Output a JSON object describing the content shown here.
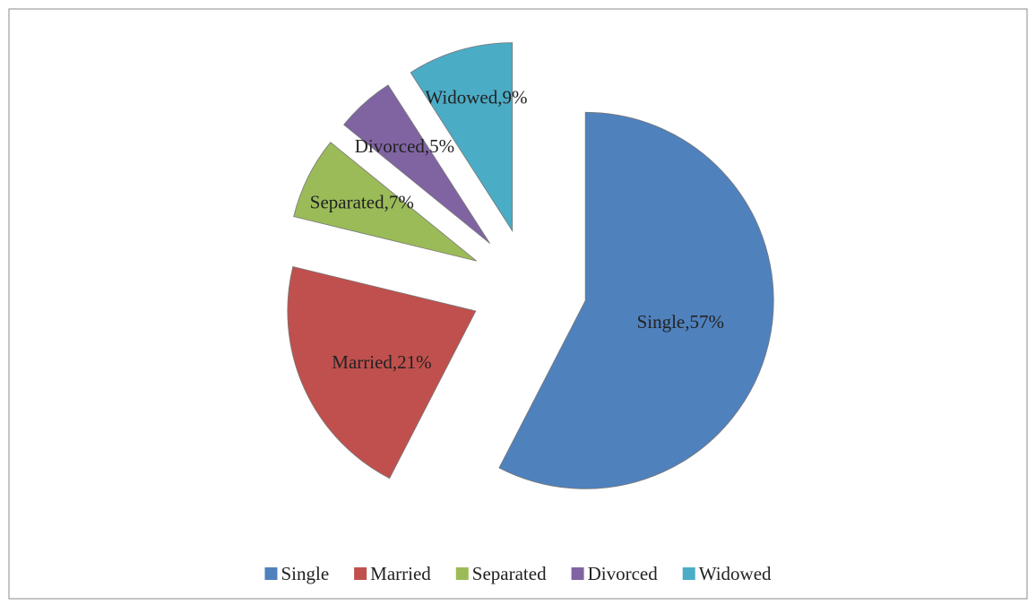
{
  "chart_data": {
    "type": "pie",
    "categories": [
      "Single",
      "Married",
      "Separated",
      "Divorced",
      "Widowed"
    ],
    "values": [
      57,
      21,
      7,
      5,
      9
    ],
    "value_labels": [
      "Single,57%",
      "Married,21%",
      "Separated,7%",
      "Divorced,5%",
      "Widowed,9%"
    ],
    "colors": [
      "#4f81bd",
      "#c0504d",
      "#9bbb59",
      "#8064a2",
      "#4bacc6"
    ],
    "legend": "bottom"
  }
}
